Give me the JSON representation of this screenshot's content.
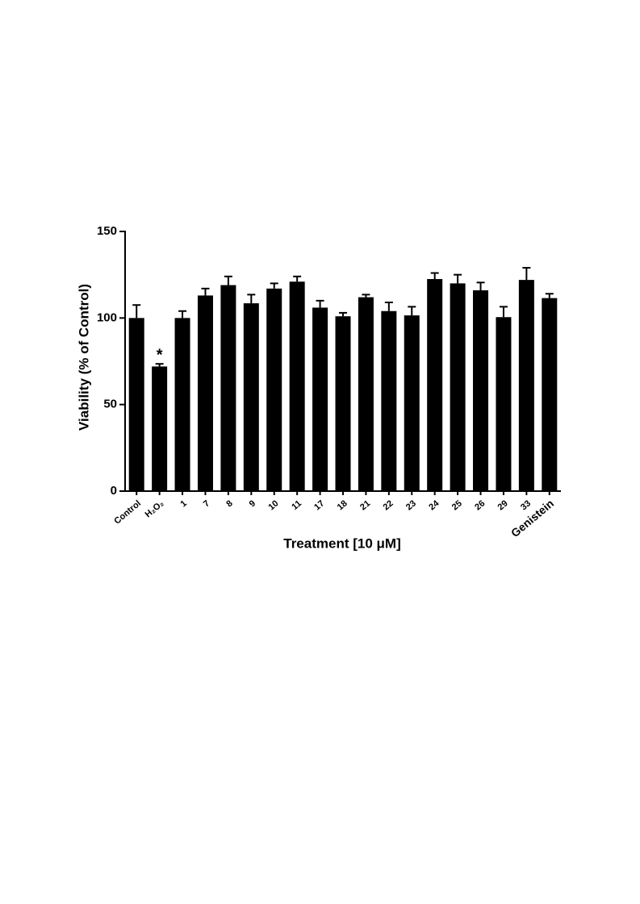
{
  "chart_data": {
    "type": "bar",
    "categories": [
      "Control",
      "H₂O₂",
      "1",
      "7",
      "8",
      "9",
      "10",
      "11",
      "17",
      "18",
      "21",
      "22",
      "23",
      "24",
      "25",
      "26",
      "29",
      "33",
      "Genistein"
    ],
    "values": [
      100,
      72,
      100,
      113,
      119,
      108.5,
      117,
      121,
      106,
      101,
      112,
      104,
      101.5,
      122.5,
      120,
      116,
      100.5,
      122,
      111.5
    ],
    "errors": [
      7.5,
      1.5,
      4,
      4,
      5,
      5,
      3,
      3,
      4,
      2,
      1.5,
      5,
      5,
      3.5,
      5,
      4.5,
      6,
      7,
      2.5
    ],
    "value_annotations": [
      null,
      "*",
      null,
      null,
      null,
      null,
      null,
      null,
      null,
      null,
      null,
      null,
      null,
      null,
      null,
      null,
      null,
      null,
      null
    ],
    "color": "#000000",
    "x_label": "Treatment [10 μM]",
    "y_label": "Viability (% of Control)",
    "ylim": [
      0,
      150
    ],
    "yticks": [
      0,
      50,
      100,
      150
    ],
    "grid": false
  }
}
